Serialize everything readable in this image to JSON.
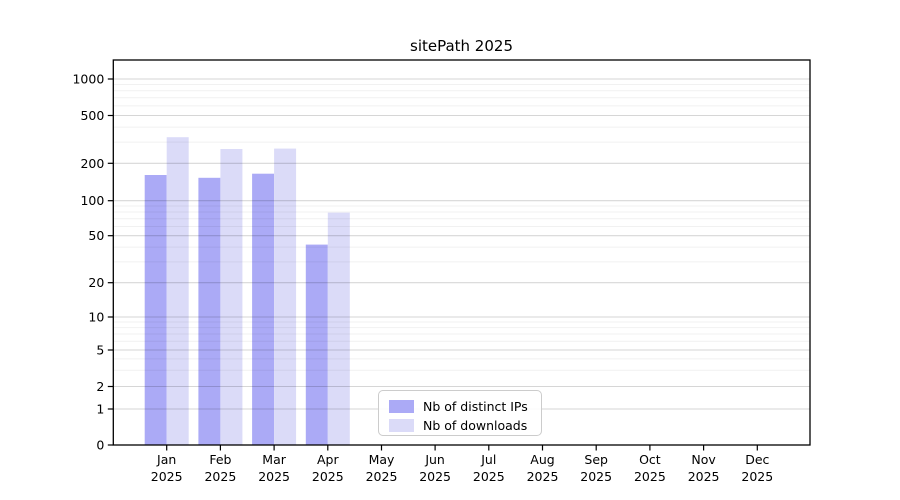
{
  "title": "sitePath 2025",
  "colors": {
    "distinct_ips": "#abaaf6",
    "downloads": "#dbdbf8",
    "grid_major": "rgba(0,0,0,0.16)",
    "grid_minor": "rgba(0,0,0,0.055)",
    "spine": "#000000"
  },
  "legend": {
    "items": [
      {
        "label": "Nb of distinct IPs",
        "color_key": "distinct_ips"
      },
      {
        "label": "Nb of downloads",
        "color_key": "downloads"
      }
    ]
  },
  "chart_data": {
    "type": "bar",
    "title": "sitePath 2025",
    "x_categories": [
      "Jan",
      "Feb",
      "Mar",
      "Apr",
      "May",
      "Jun",
      "Jul",
      "Aug",
      "Sep",
      "Oct",
      "Nov",
      "Dec"
    ],
    "x_year": "2025",
    "categories": [
      "Jan 2025",
      "Feb 2025",
      "Mar 2025",
      "Apr 2025",
      "May 2025",
      "Jun 2025",
      "Jul 2025",
      "Aug 2025",
      "Sep 2025",
      "Oct 2025",
      "Nov 2025",
      "Dec 2025"
    ],
    "series": [
      {
        "name": "Nb of distinct IPs",
        "color_key": "distinct_ips",
        "values": [
          161,
          153,
          165,
          42,
          null,
          null,
          null,
          null,
          null,
          null,
          null,
          null
        ]
      },
      {
        "name": "Nb of downloads",
        "color_key": "downloads",
        "values": [
          330,
          263,
          265,
          79,
          null,
          null,
          null,
          null,
          null,
          null,
          null,
          null
        ]
      }
    ],
    "yscale": "symlog",
    "y_ticks": [
      0,
      1,
      2,
      5,
      10,
      20,
      50,
      100,
      200,
      500,
      1000
    ],
    "y_minor_ticks": [
      3,
      4,
      6,
      7,
      8,
      9,
      30,
      40,
      60,
      70,
      80,
      90,
      300,
      400,
      600,
      700,
      800,
      900
    ],
    "ylim": [
      0,
      1400
    ],
    "grid": true,
    "legend_position": "lower center inside"
  }
}
